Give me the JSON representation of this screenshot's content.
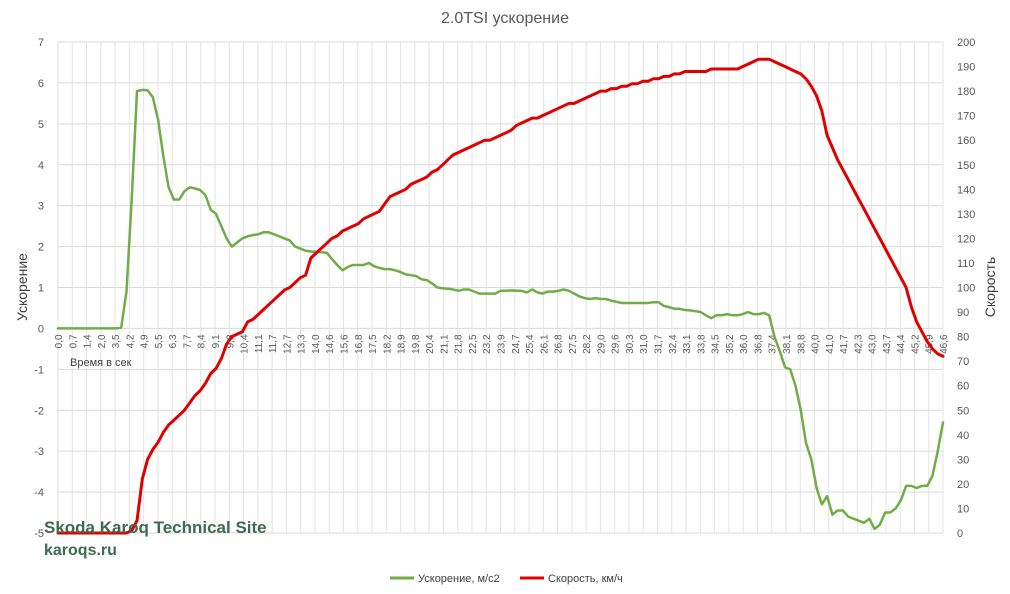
{
  "chart_data": {
    "type": "line",
    "title": "2.0TSI ускорение",
    "x_note": "Время в сек",
    "y_left_label": "Ускорение",
    "y_right_label": "Скорость",
    "y_left_range": [
      -5,
      7
    ],
    "y_left_ticks": [
      -5,
      -4,
      -3,
      -2,
      -1,
      0,
      1,
      2,
      3,
      4,
      5,
      6,
      7
    ],
    "y_right_range": [
      0,
      200
    ],
    "y_right_ticks": [
      0,
      10,
      20,
      30,
      40,
      50,
      60,
      70,
      80,
      90,
      100,
      110,
      120,
      130,
      140,
      150,
      160,
      170,
      180,
      190,
      200
    ],
    "x_tick_labels": [
      "0,0",
      "0,7",
      "1,4",
      "2,0",
      "3,5",
      "4,2",
      "4,9",
      "5,5",
      "6,3",
      "7,7",
      "8,4",
      "9,1",
      "9,8",
      "10,4",
      "11,1",
      "11,7",
      "12,7",
      "13,3",
      "14,0",
      "14,6",
      "15,6",
      "16,8",
      "17,5",
      "18,2",
      "18,9",
      "19,8",
      "20,4",
      "21,1",
      "21,8",
      "22,5",
      "23,2",
      "23,9",
      "24,7",
      "25,4",
      "26,1",
      "26,8",
      "27,5",
      "28,2",
      "29,0",
      "29,6",
      "30,3",
      "31,0",
      "31,7",
      "32,4",
      "33,1",
      "33,8",
      "34,5",
      "35,2",
      "36,0",
      "36,8",
      "37,4",
      "38,1",
      "38,8",
      "40,0",
      "41,0",
      "41,7",
      "42,3",
      "43,0",
      "43,7",
      "44,4",
      "45,2",
      "45,9",
      "46,6"
    ],
    "grid": true,
    "legend_position": "bottom",
    "series": [
      {
        "name": "Ускорение, м/с2",
        "axis": "left",
        "color": "#70ad47",
        "values": [
          0,
          0,
          0,
          0,
          0,
          0,
          0,
          0,
          0,
          0,
          0,
          0,
          0.02,
          0.9,
          3.2,
          5.8,
          5.83,
          5.82,
          5.65,
          5.1,
          4.2,
          3.45,
          3.15,
          3.15,
          3.35,
          3.45,
          3.42,
          3.38,
          3.25,
          2.9,
          2.8,
          2.5,
          2.2,
          2.0,
          2.1,
          2.2,
          2.25,
          2.28,
          2.3,
          2.35,
          2.35,
          2.3,
          2.25,
          2.2,
          2.15,
          2.0,
          1.95,
          1.9,
          1.88,
          1.87,
          1.86,
          1.85,
          1.7,
          1.55,
          1.42,
          1.5,
          1.55,
          1.55,
          1.55,
          1.6,
          1.52,
          1.48,
          1.45,
          1.45,
          1.42,
          1.38,
          1.32,
          1.3,
          1.28,
          1.2,
          1.18,
          1.1,
          1.0,
          0.98,
          0.97,
          0.95,
          0.92,
          0.95,
          0.95,
          0.9,
          0.85,
          0.85,
          0.85,
          0.85,
          0.92,
          0.92,
          0.93,
          0.92,
          0.92,
          0.88,
          0.95,
          0.88,
          0.85,
          0.9,
          0.9,
          0.92,
          0.95,
          0.92,
          0.85,
          0.78,
          0.74,
          0.72,
          0.74,
          0.72,
          0.72,
          0.68,
          0.65,
          0.62,
          0.62,
          0.62,
          0.62,
          0.62,
          0.62,
          0.64,
          0.64,
          0.55,
          0.52,
          0.48,
          0.48,
          0.45,
          0.44,
          0.42,
          0.4,
          0.32,
          0.25,
          0.32,
          0.32,
          0.35,
          0.32,
          0.32,
          0.35,
          0.4,
          0.35,
          0.35,
          0.38,
          0.32,
          -0.2,
          -0.55,
          -0.95,
          -1.0,
          -1.4,
          -2.0,
          -2.8,
          -3.2,
          -3.9,
          -4.3,
          -4.1,
          -4.55,
          -4.45,
          -4.45,
          -4.6,
          -4.65,
          -4.7,
          -4.75,
          -4.65,
          -4.9,
          -4.8,
          -4.5,
          -4.5,
          -4.4,
          -4.2,
          -3.85,
          -3.85,
          -3.9,
          -3.85,
          -3.85,
          -3.6,
          -3.0,
          -2.3
        ]
      },
      {
        "name": "Скорость, км/ч",
        "axis": "right",
        "color": "#e00000",
        "values": [
          0,
          0,
          0,
          0,
          0,
          0,
          0,
          0,
          0,
          0,
          0,
          0,
          0,
          0,
          1,
          5,
          22,
          30,
          34,
          37,
          41,
          44,
          46,
          48,
          50,
          53,
          56,
          58,
          61,
          65,
          67,
          71,
          77,
          80,
          81,
          82,
          86,
          87,
          89,
          91,
          93,
          95,
          97,
          99,
          100,
          102,
          104,
          105,
          112,
          114,
          116,
          118,
          120,
          121,
          123,
          124,
          125,
          126,
          128,
          129,
          130,
          131,
          134,
          137,
          138,
          139,
          140,
          142,
          143,
          144,
          145,
          147,
          148,
          150,
          152,
          154,
          155,
          156,
          157,
          158,
          159,
          160,
          160,
          161,
          162,
          163,
          164,
          166,
          167,
          168,
          169,
          169,
          170,
          171,
          172,
          173,
          174,
          175,
          175,
          176,
          177,
          178,
          179,
          180,
          180,
          181,
          181,
          182,
          182,
          183,
          183,
          184,
          184,
          185,
          185,
          186,
          186,
          187,
          187,
          188,
          188,
          188,
          188,
          188,
          189,
          189,
          189,
          189,
          189,
          189,
          190,
          191,
          192,
          193,
          193,
          193,
          192,
          191,
          190,
          189,
          188,
          187,
          185,
          182,
          178,
          172,
          162,
          157,
          152,
          148,
          144,
          140,
          136,
          132,
          128,
          124,
          120,
          116,
          112,
          108,
          104,
          100,
          92,
          86,
          82,
          78,
          75,
          73,
          72
        ]
      }
    ]
  },
  "watermark": {
    "line1": "Skoda Karoq Technical Site",
    "line2": "karoqs.ru"
  }
}
